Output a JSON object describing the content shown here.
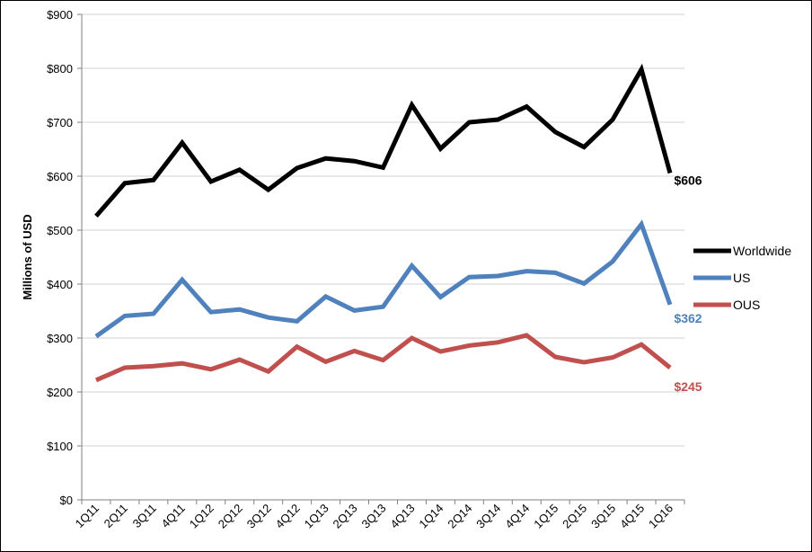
{
  "chart_data": {
    "type": "line",
    "title": "",
    "xlabel": "",
    "ylabel": "Millions of USD",
    "ylim": [
      0,
      900
    ],
    "ytick_values": [
      0,
      100,
      200,
      300,
      400,
      500,
      600,
      700,
      800,
      900
    ],
    "ytick_labels": [
      "$0",
      "$100",
      "$200",
      "$300",
      "$400",
      "$500",
      "$600",
      "$700",
      "$800",
      "$900"
    ],
    "categories": [
      "1Q11",
      "2Q11",
      "3Q11",
      "4Q11",
      "1Q12",
      "2Q12",
      "3Q12",
      "4Q12",
      "1Q13",
      "2Q13",
      "3Q13",
      "4Q13",
      "1Q14",
      "2Q14",
      "3Q14",
      "4Q14",
      "1Q15",
      "2Q15",
      "3Q15",
      "4Q15",
      "1Q16"
    ],
    "grid": "horizontal",
    "legend_position": "right",
    "series": [
      {
        "name": "Worldwide",
        "color": "#000000",
        "values": [
          526,
          587,
          593,
          662,
          590,
          612,
          575,
          615,
          633,
          628,
          616,
          732,
          651,
          700,
          705,
          729,
          682,
          654,
          705,
          798,
          606
        ],
        "end_label": "$606"
      },
      {
        "name": "US",
        "color": "#4f81bd",
        "values": [
          303,
          341,
          345,
          408,
          348,
          353,
          338,
          331,
          377,
          351,
          358,
          434,
          376,
          413,
          415,
          424,
          421,
          401,
          442,
          511,
          362
        ],
        "end_label": "$362"
      },
      {
        "name": "OUS",
        "color": "#c0504d",
        "values": [
          222,
          245,
          248,
          253,
          242,
          260,
          238,
          284,
          256,
          276,
          259,
          300,
          275,
          286,
          292,
          305,
          265,
          255,
          264,
          288,
          245
        ],
        "end_label": "$245"
      }
    ]
  }
}
